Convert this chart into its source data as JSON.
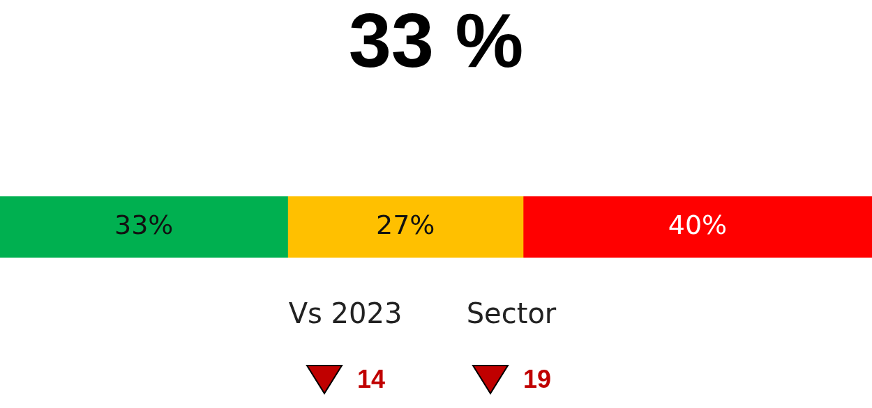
{
  "chart_data": {
    "type": "bar",
    "title": "33 %",
    "orientation": "horizontal",
    "stacked": true,
    "categories": [
      null
    ],
    "series": [
      {
        "color": "#00b050",
        "values": [
          33
        ],
        "value_labels": [
          "33%"
        ]
      },
      {
        "color": "#ffc000",
        "values": [
          27
        ],
        "value_labels": [
          "27%"
        ]
      },
      {
        "color": "#ff0000",
        "values": [
          40
        ],
        "value_labels": [
          "40%"
        ]
      }
    ],
    "legend": false,
    "tick_labels": false,
    "annotations": [
      "Vs 2023",
      "Sector",
      "14",
      "19"
    ]
  }
}
